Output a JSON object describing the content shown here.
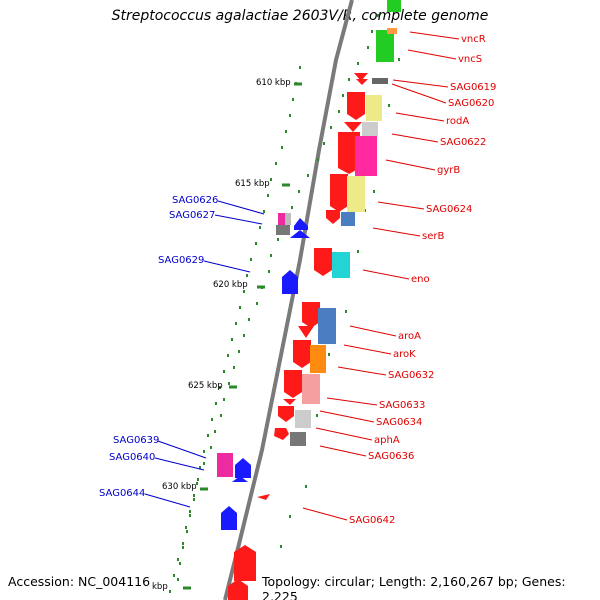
{
  "title": "Streptococcus agalactiae 2603V/R, complete genome",
  "footer": {
    "accession": "Accession: NC_004116",
    "summary": "Topology: circular; Length: 2,160,267 bp; Genes: 2,225"
  },
  "scale_labels": [
    "610 kbp",
    "615 kbp",
    "620 kbp",
    "625 kbp",
    "630 kbp",
    "kbp"
  ],
  "gene_labels_right": [
    "vncR",
    "vncS",
    "SAG0619",
    "SAG0620",
    "rodA",
    "SAG0622",
    "gyrB",
    "SAG0624",
    "serB",
    "eno",
    "aroA",
    "aroK",
    "SAG0632",
    "SAG0633",
    "SAG0634",
    "aphA",
    "SAG0636",
    "SAG0642"
  ],
  "gene_labels_left": [
    "SAG0626",
    "SAG0627",
    "SAG0629",
    "SAG0639",
    "SAG0640",
    "SAG0644"
  ],
  "colors": {
    "backbone": "#7a7a7a",
    "forward_gene": "#ff1a1a",
    "reverse_gene": "#1a1aff",
    "tick": "#2a8a2a",
    "red_label": "#e00000",
    "blue_label": "#0000cc"
  }
}
